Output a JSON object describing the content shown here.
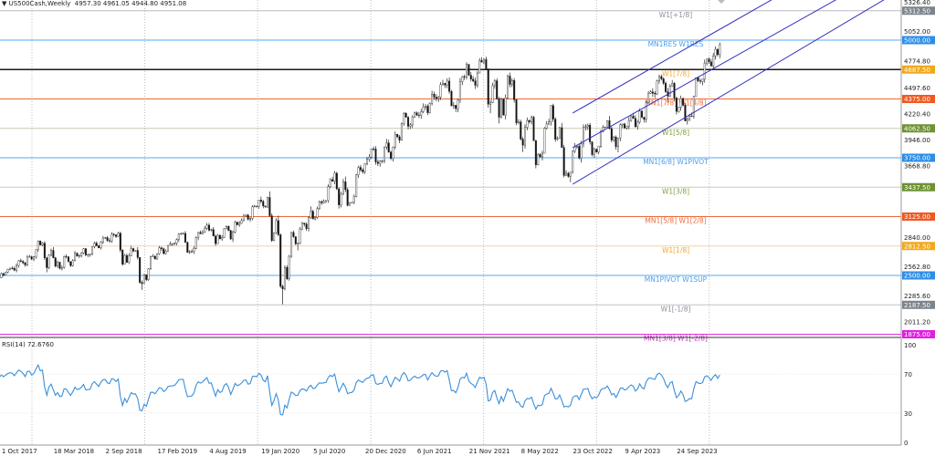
{
  "header": {
    "symbol_timeframe": "US500Cash,Weekly",
    "ohlc": "4957.30 4961.05 4944.80 4951.08",
    "menu_icon": "triangle-down-icon"
  },
  "rsi": {
    "label": "RSI(14) 72.6760",
    "period": 14,
    "current": 72.676,
    "levels": [
      70,
      30
    ],
    "axis_ticks": [
      "100",
      "70",
      "30",
      "0"
    ],
    "color": "#3b8fd9"
  },
  "chart_data": {
    "type": "candlestick",
    "title": "US500Cash,Weekly",
    "ylim": [
      1850,
      5360
    ],
    "price_ticks": [
      "5326.40",
      "5052.00",
      "4774.80",
      "4497.60",
      "4220.40",
      "3946.00",
      "3668.80",
      "2840.00",
      "2562.80",
      "2285.60",
      "2011.20"
    ],
    "date_ticks": [
      "1 Oct 2017",
      "18 Mar 2018",
      "2 Sep 2018",
      "17 Feb 2019",
      "4 Aug 2019",
      "19 Jan 2020",
      "5 Jul 2020",
      "20 Dec 2020",
      "6 Jun 2021",
      "21 Nov 2021",
      "8 May 2022",
      "23 Oct 2022",
      "9 Apr 2023",
      "24 Sep 2023"
    ],
    "date_tick_iso": [
      "2017-10-01",
      "2018-03-18",
      "2018-09-02",
      "2019-02-17",
      "2019-08-04",
      "2020-01-19",
      "2020-07-05",
      "2020-12-20",
      "2021-06-06",
      "2021-11-21",
      "2022-05-08",
      "2022-10-23",
      "2023-04-09",
      "2023-09-24"
    ],
    "monthly_ohlc_columns": [
      "month",
      "open",
      "high",
      "low",
      "close"
    ],
    "monthly_ohlc": [
      [
        "2017-09",
        2470,
        2520,
        2466,
        2519
      ],
      [
        "2017-10",
        2519,
        2582,
        2520,
        2575
      ],
      [
        "2017-11",
        2575,
        2657,
        2566,
        2648
      ],
      [
        "2017-12",
        2648,
        2695,
        2605,
        2674
      ],
      [
        "2018-01",
        2674,
        2873,
        2682,
        2824
      ],
      [
        "2018-02",
        2824,
        2835,
        2533,
        2714
      ],
      [
        "2018-03",
        2714,
        2801,
        2585,
        2641
      ],
      [
        "2018-04",
        2641,
        2718,
        2553,
        2648
      ],
      [
        "2018-05",
        2648,
        2742,
        2594,
        2705
      ],
      [
        "2018-06",
        2705,
        2791,
        2691,
        2718
      ],
      [
        "2018-07",
        2718,
        2848,
        2698,
        2816
      ],
      [
        "2018-08",
        2816,
        2916,
        2796,
        2902
      ],
      [
        "2018-09",
        2902,
        2940,
        2864,
        2914
      ],
      [
        "2018-10",
        2914,
        2939,
        2603,
        2712
      ],
      [
        "2018-11",
        2712,
        2815,
        2631,
        2760
      ],
      [
        "2018-12",
        2760,
        2800,
        2346,
        2507
      ],
      [
        "2019-01",
        2507,
        2708,
        2444,
        2704
      ],
      [
        "2019-02",
        2704,
        2813,
        2681,
        2784
      ],
      [
        "2019-03",
        2784,
        2860,
        2722,
        2834
      ],
      [
        "2019-04",
        2834,
        2949,
        2848,
        2946
      ],
      [
        "2019-05",
        2946,
        2954,
        2750,
        2752
      ],
      [
        "2019-06",
        2752,
        2964,
        2728,
        2942
      ],
      [
        "2019-07",
        2942,
        3028,
        2952,
        2980
      ],
      [
        "2019-08",
        2980,
        3014,
        2822,
        2926
      ],
      [
        "2019-09",
        2926,
        3022,
        2891,
        2977
      ],
      [
        "2019-10",
        2977,
        3050,
        2855,
        3038
      ],
      [
        "2019-11",
        3038,
        3154,
        3050,
        3141
      ],
      [
        "2019-12",
        3141,
        3248,
        3070,
        3231
      ],
      [
        "2020-01",
        3231,
        3338,
        3214,
        3226
      ],
      [
        "2020-02",
        3226,
        3393,
        2855,
        2954
      ],
      [
        "2020-03",
        2954,
        3136,
        2192,
        2585
      ],
      [
        "2020-04",
        2585,
        2954,
        2447,
        2912
      ],
      [
        "2020-05",
        2912,
        3068,
        2766,
        3044
      ],
      [
        "2020-06",
        3044,
        3233,
        2966,
        3100
      ],
      [
        "2020-07",
        3100,
        3280,
        3101,
        3271
      ],
      [
        "2020-08",
        3271,
        3514,
        3267,
        3500
      ],
      [
        "2020-09",
        3500,
        3588,
        3210,
        3363
      ],
      [
        "2020-10",
        3363,
        3550,
        3233,
        3270
      ],
      [
        "2020-11",
        3270,
        3646,
        3279,
        3622
      ],
      [
        "2020-12",
        3622,
        3760,
        3594,
        3756
      ],
      [
        "2021-01",
        3756,
        3870,
        3663,
        3714
      ],
      [
        "2021-02",
        3714,
        3950,
        3725,
        3811
      ],
      [
        "2021-03",
        3811,
        3983,
        3723,
        3973
      ],
      [
        "2021-04",
        3973,
        4218,
        3955,
        4181
      ],
      [
        "2021-05",
        4181,
        4238,
        4056,
        4204
      ],
      [
        "2021-06",
        4204,
        4302,
        4164,
        4298
      ],
      [
        "2021-07",
        4298,
        4429,
        4233,
        4395
      ],
      [
        "2021-08",
        4395,
        4538,
        4368,
        4523
      ],
      [
        "2021-09",
        4523,
        4546,
        4306,
        4308
      ],
      [
        "2021-10",
        4308,
        4608,
        4278,
        4605
      ],
      [
        "2021-11",
        4605,
        4744,
        4560,
        4567
      ],
      [
        "2021-12",
        4567,
        4808,
        4495,
        4766
      ],
      [
        "2022-01",
        4766,
        4818,
        4222,
        4516
      ],
      [
        "2022-02",
        4516,
        4595,
        4115,
        4374
      ],
      [
        "2022-03",
        4374,
        4637,
        4157,
        4530
      ],
      [
        "2022-04",
        4530,
        4593,
        4125,
        4132
      ],
      [
        "2022-05",
        4132,
        4169,
        3811,
        4132
      ],
      [
        "2022-06",
        4132,
        4177,
        3637,
        3785
      ],
      [
        "2022-07",
        3785,
        4140,
        3721,
        4130
      ],
      [
        "2022-08",
        4130,
        4325,
        3955,
        3955
      ],
      [
        "2022-09",
        3955,
        4120,
        3585,
        3586
      ],
      [
        "2022-10",
        3586,
        3905,
        3491,
        3872
      ],
      [
        "2022-11",
        3872,
        4080,
        3699,
        4080
      ],
      [
        "2022-12",
        4080,
        4100,
        3764,
        3840
      ],
      [
        "2023-01",
        3840,
        4095,
        3794,
        4077
      ],
      [
        "2023-02",
        4077,
        4195,
        3944,
        3970
      ],
      [
        "2023-03",
        3970,
        4110,
        3808,
        4109
      ],
      [
        "2023-04",
        4109,
        4170,
        4049,
        4169
      ],
      [
        "2023-05",
        4169,
        4231,
        4048,
        4180
      ],
      [
        "2023-06",
        4180,
        4458,
        4166,
        4450
      ],
      [
        "2023-07",
        4450,
        4607,
        4385,
        4589
      ],
      [
        "2023-08",
        4589,
        4540,
        4335,
        4508
      ],
      [
        "2023-09",
        4508,
        4541,
        4238,
        4288
      ],
      [
        "2023-10",
        4288,
        4393,
        4103,
        4194
      ],
      [
        "2023-11",
        4194,
        4587,
        4167,
        4568
      ],
      [
        "2023-12",
        4568,
        4793,
        4546,
        4770
      ],
      [
        "2024-01",
        4770,
        4931,
        4682,
        4846
      ],
      [
        "2024-02",
        4846,
        4975,
        4845,
        4951
      ]
    ],
    "levels": [
      {
        "price": 5312.5,
        "value": "5312.50",
        "label": "W1[+1/8]",
        "line": "#b8bcc2",
        "badge": "#7d848c",
        "text": "#8a8f96"
      },
      {
        "price": 5000,
        "value": "5000.00",
        "label": "MN1RES W1RES",
        "line": "#5aaaf0",
        "badge": "#2e8de6",
        "text": "#4a9ee8"
      },
      {
        "price": 4687.5,
        "value": "4687.50",
        "label": "W1[7/8]",
        "line": "#1a1a1a",
        "badge": "#f2a81d",
        "text": "#f0a830"
      },
      {
        "price": 4375,
        "value": "4375.00",
        "label": "MN1[7/8] W1[4/8]",
        "line": "#ee6a3a",
        "badge": "#ef5a22",
        "text": "#ee6a3a"
      },
      {
        "price": 4062.5,
        "value": "4062.50",
        "label": "W1[5/8]",
        "line": "#c8ccb4",
        "badge": "#6e9234",
        "text": "#7da040"
      },
      {
        "price": 3750,
        "value": "3750.00",
        "label": "MN1[6/8] W1PIVOT",
        "line": "#5aaaf0",
        "badge": "#2e8de6",
        "text": "#4a9ee8"
      },
      {
        "price": 3437.5,
        "value": "3437.50",
        "label": "W1[3/8]",
        "line": "#c8ccb4",
        "badge": "#6e9234",
        "text": "#7da040"
      },
      {
        "price": 3125,
        "value": "3125.00",
        "label": "MN1[5/8] W1[2/8]",
        "line": "#ee6a3a",
        "badge": "#ef5a22",
        "text": "#ee6a3a"
      },
      {
        "price": 2812.5,
        "value": "2812.50",
        "label": "W1[1/8]",
        "line": "#f5d39a",
        "badge": "#f2a81d",
        "text": "#f0a830"
      },
      {
        "price": 2500,
        "value": "2500.00",
        "label": "MN1PIVOT W1SUP",
        "line": "#5aaaf0",
        "badge": "#2e8de6",
        "text": "#4a9ee8"
      },
      {
        "price": 2187.5,
        "value": "2187.50",
        "label": "W1[-1/8]",
        "line": "#c0c3c8",
        "badge": "#7d848c",
        "text": "#8a8f96"
      },
      {
        "price": 1875,
        "value": "1875.00",
        "label": "MN1[3/8] W1[-2/8]",
        "line": "#e030e0",
        "badge": "#e020e0",
        "text": "#c030c0"
      }
    ],
    "channel": {
      "color": "#2f2fc0",
      "lines": [
        {
          "name": "upper",
          "start": [
            "2022-10-16",
            4225
          ],
          "end": [
            "2024-12-01",
            5678
          ]
        },
        {
          "name": "middle",
          "start": [
            "2022-10-16",
            3857
          ],
          "end": [
            "2024-12-01",
            5291
          ]
        },
        {
          "name": "lower",
          "start": [
            "2022-10-16",
            3469
          ],
          "end": [
            "2024-12-01",
            4981
          ]
        }
      ]
    },
    "grid": "year separators",
    "last_bar": "2024-02-04"
  }
}
